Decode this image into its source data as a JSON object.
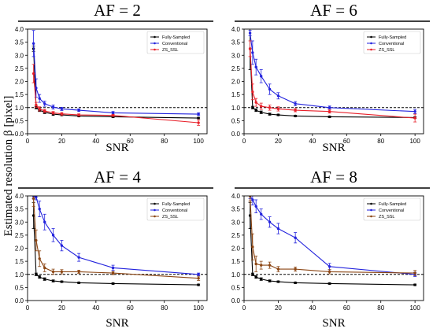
{
  "figure": {
    "ylabel": "Estimated resolution β [pixel]",
    "xlabel": "SNR"
  },
  "chart_data": [
    {
      "type": "line",
      "title": "AF = 2",
      "xlabel": "SNR",
      "ylabel": "Estimated resolution β [pixel]",
      "xlim": [
        0,
        105
      ],
      "ylim": [
        0,
        4
      ],
      "xticks": [
        "0",
        "20",
        "40",
        "60",
        "80",
        "100"
      ],
      "yticks": [
        "0.0",
        "0.5",
        "1.0",
        "1.5",
        "2.0",
        "2.5",
        "3.0",
        "3.5",
        "4.0"
      ],
      "reference_line": 1.0,
      "legend_position": "top-right",
      "x": [
        3.5,
        5,
        7,
        10,
        15,
        20,
        30,
        50,
        100
      ],
      "series": [
        {
          "name": "Fully-Sampled",
          "color": "#000000",
          "values": [
            3.25,
            1.0,
            0.9,
            0.82,
            0.75,
            0.72,
            0.68,
            0.65,
            0.6
          ],
          "errors": [
            0.1,
            0.05,
            0.05,
            0.05,
            0.05,
            0.03,
            0.03,
            0.03,
            0.03
          ]
        },
        {
          "name": "Conventional",
          "color": "#2222dd",
          "values": [
            3.45,
            1.75,
            1.35,
            1.15,
            1.02,
            0.95,
            0.9,
            0.8,
            0.75
          ],
          "errors": [
            0.5,
            0.35,
            0.15,
            0.1,
            0.08,
            0.06,
            0.05,
            0.05,
            0.05
          ]
        },
        {
          "name": "ZS_SSL",
          "color": "#e8202a",
          "values": [
            2.3,
            1.1,
            0.95,
            0.87,
            0.8,
            0.76,
            0.72,
            0.7,
            0.42
          ],
          "errors": [
            0.35,
            0.1,
            0.08,
            0.06,
            0.05,
            0.05,
            0.04,
            0.04,
            0.1
          ]
        }
      ]
    },
    {
      "type": "line",
      "title": "AF = 6",
      "xlabel": "SNR",
      "ylabel": "Estimated resolution β [pixel]",
      "xlim": [
        0,
        105
      ],
      "ylim": [
        0,
        4
      ],
      "xticks": [
        "0",
        "20",
        "40",
        "60",
        "80",
        "100"
      ],
      "yticks": [
        "0.0",
        "0.5",
        "1.0",
        "1.5",
        "2.0",
        "2.5",
        "3.0",
        "3.5",
        "4.0"
      ],
      "reference_line": 1.0,
      "legend_position": "top-right",
      "x": [
        3.5,
        5,
        7,
        10,
        15,
        20,
        30,
        50,
        100
      ],
      "series": [
        {
          "name": "Fully-Sampled",
          "color": "#000000",
          "values": [
            3.25,
            1.0,
            0.9,
            0.82,
            0.75,
            0.72,
            0.68,
            0.65,
            0.62
          ],
          "errors": [
            0.8,
            0.05,
            0.05,
            0.05,
            0.04,
            0.03,
            0.03,
            0.03,
            0.03
          ]
        },
        {
          "name": "Conventional",
          "color": "#2222dd",
          "values": [
            3.85,
            3.1,
            2.55,
            2.2,
            1.7,
            1.45,
            1.15,
            1.0,
            0.85
          ],
          "errors": [
            0.1,
            0.45,
            0.3,
            0.25,
            0.2,
            0.12,
            0.08,
            0.06,
            0.08
          ]
        },
        {
          "name": "ZS_SSL",
          "color": "#e8202a",
          "values": [
            3.25,
            1.6,
            1.2,
            1.05,
            1.0,
            0.95,
            0.9,
            0.85,
            0.6
          ],
          "errors": [
            0.3,
            0.3,
            0.15,
            0.12,
            0.1,
            0.08,
            0.06,
            0.06,
            0.15
          ]
        }
      ]
    },
    {
      "type": "line",
      "title": "AF = 4",
      "xlabel": "SNR",
      "ylabel": "Estimated resolution β [pixel]",
      "xlim": [
        0,
        105
      ],
      "ylim": [
        0,
        4
      ],
      "xticks": [
        "0",
        "20",
        "40",
        "60",
        "80",
        "100"
      ],
      "yticks": [
        "0.0",
        "0.5",
        "1.0",
        "1.5",
        "2.0",
        "2.5",
        "3.0",
        "3.5",
        "4.0"
      ],
      "reference_line": 1.0,
      "legend_position": "top-right",
      "x": [
        3.5,
        5,
        7,
        10,
        15,
        20,
        30,
        50,
        100
      ],
      "series": [
        {
          "name": "Fully-Sampled",
          "color": "#000000",
          "values": [
            3.25,
            1.0,
            0.9,
            0.82,
            0.75,
            0.72,
            0.68,
            0.65,
            0.6
          ],
          "errors": [
            0.5,
            0.05,
            0.05,
            0.05,
            0.04,
            0.03,
            0.03,
            0.03,
            0.03
          ]
        },
        {
          "name": "Conventional",
          "color": "#2222dd",
          "values": [
            4.0,
            3.95,
            3.5,
            3.0,
            2.5,
            2.1,
            1.65,
            1.25,
            1.0
          ],
          "errors": [
            0.1,
            0.1,
            0.3,
            0.3,
            0.25,
            0.2,
            0.15,
            0.1,
            0.05
          ]
        },
        {
          "name": "ZS_SSL",
          "color": "#8b4513",
          "values": [
            3.9,
            2.3,
            1.6,
            1.25,
            1.1,
            1.1,
            1.1,
            1.05,
            0.85
          ],
          "errors": [
            0.3,
            0.4,
            0.3,
            0.15,
            0.1,
            0.08,
            0.06,
            0.06,
            0.08
          ]
        }
      ]
    },
    {
      "type": "line",
      "title": "AF = 8",
      "xlabel": "SNR",
      "ylabel": "Estimated resolution β [pixel]",
      "xlim": [
        0,
        105
      ],
      "ylim": [
        0,
        4
      ],
      "xticks": [
        "0",
        "20",
        "40",
        "60",
        "80",
        "100"
      ],
      "yticks": [
        "0.0",
        "0.5",
        "1.0",
        "1.5",
        "2.0",
        "2.5",
        "3.0",
        "3.5",
        "4.0"
      ],
      "reference_line": 1.0,
      "legend_position": "top-right",
      "x": [
        3.5,
        5,
        7,
        10,
        15,
        20,
        30,
        50,
        100
      ],
      "series": [
        {
          "name": "Fully-Sampled",
          "color": "#000000",
          "values": [
            3.25,
            1.0,
            0.9,
            0.82,
            0.75,
            0.72,
            0.68,
            0.65,
            0.6
          ],
          "errors": [
            0.5,
            0.05,
            0.05,
            0.05,
            0.04,
            0.03,
            0.03,
            0.03,
            0.03
          ]
        },
        {
          "name": "Conventional",
          "color": "#2222dd",
          "values": [
            4.0,
            3.85,
            3.6,
            3.3,
            3.0,
            2.75,
            2.4,
            1.3,
            1.0
          ],
          "errors": [
            0.1,
            0.2,
            0.25,
            0.2,
            0.2,
            0.2,
            0.2,
            0.12,
            0.08
          ]
        },
        {
          "name": "ZS_SSL",
          "color": "#8b4513",
          "values": [
            4.0,
            2.05,
            1.4,
            1.35,
            1.35,
            1.2,
            1.2,
            1.1,
            1.05
          ],
          "errors": [
            0.2,
            0.5,
            0.3,
            0.15,
            0.12,
            0.1,
            0.08,
            0.08,
            0.1
          ]
        }
      ]
    }
  ]
}
